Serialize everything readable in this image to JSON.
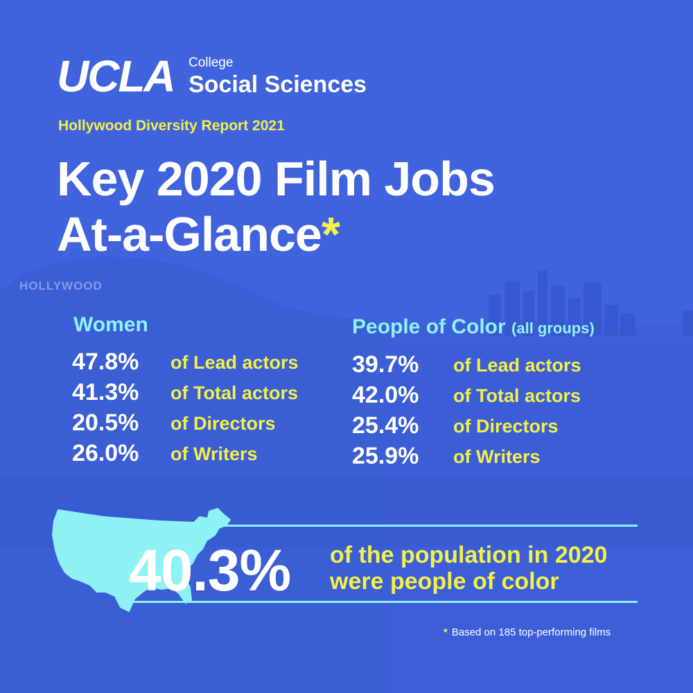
{
  "logo": {
    "main": "UCLA",
    "small": "College",
    "big": "Social Sciences"
  },
  "subtitle": "Hollywood Diversity Report 2021",
  "title": {
    "line1": "Key 2020 Film Jobs",
    "line2": "At-a-Glance",
    "asterisk": "*"
  },
  "background": {
    "sign_text": "HOLLYWOOD"
  },
  "women": {
    "heading": "Women",
    "rows": [
      {
        "value": "47.8%",
        "label": "of Lead actors"
      },
      {
        "value": "41.3%",
        "label": "of Total actors"
      },
      {
        "value": "20.5%",
        "label": "of Directors"
      },
      {
        "value": "26.0%",
        "label": "of Writers"
      }
    ]
  },
  "poc": {
    "heading": "People of Color",
    "heading_note": "(all groups)",
    "rows": [
      {
        "value": "39.7%",
        "label": "of Lead actors"
      },
      {
        "value": "42.0%",
        "label": "of Total actors"
      },
      {
        "value": "25.4%",
        "label": "of Directors"
      },
      {
        "value": "25.9%",
        "label": "of Writers"
      }
    ]
  },
  "population": {
    "value": "40.3%",
    "line1": "of the population in 2020",
    "line2": "were people of color"
  },
  "footnote": {
    "star": "*",
    "text": "Based on 185 top-performing films"
  },
  "colors": {
    "background": "#3f63dc",
    "accent_yellow": "#f3f04a",
    "accent_cyan": "#8ef2f5",
    "white": "#ffffff"
  },
  "icons": [
    "usa-map-icon"
  ]
}
